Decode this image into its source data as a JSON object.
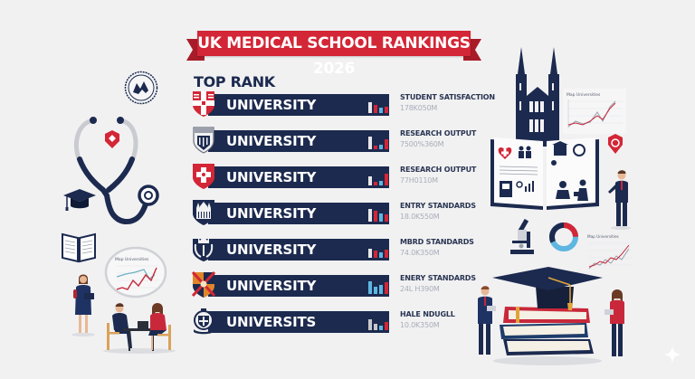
{
  "title": "UK MEDICAL SCHOOL RANKINGS 2026",
  "section_label": "TOP RANK",
  "colors": {
    "navy": "#1c2a4f",
    "red": "#d32636",
    "light_blue": "#5fb6e0",
    "background": "#f1f1f2"
  },
  "rankings": [
    {
      "name": "UNIVERSITY",
      "crest": "red-shield-cross-crest",
      "metric": "STUDENT SATISFACTION",
      "value": "178K050M",
      "bars": [
        [
          "#e8e8ea",
          12
        ],
        [
          "#d32636",
          9
        ],
        [
          "#5fb6e0",
          6
        ],
        [
          "#d32636",
          7
        ]
      ]
    },
    {
      "name": "UNIVERSITY",
      "crest": "grey-heraldic-crest",
      "metric": "RESEARCH OUTPUT",
      "value": "7500%360M",
      "bars": [
        [
          "#e8e8ea",
          14
        ],
        [
          "#d32636",
          4
        ],
        [
          "#5fb6e0",
          5
        ],
        [
          "#d32636",
          11
        ]
      ]
    },
    {
      "name": "UNIVERSITY",
      "crest": "red-shield-white-cross-crest",
      "metric": "RESEARCH OUTPUT",
      "value": "77H0110M",
      "bars": [
        [
          "#e8e8ea",
          10
        ],
        [
          "#d32636",
          4
        ],
        [
          "#5fb6e0",
          5
        ],
        [
          "#d32636",
          13
        ]
      ]
    },
    {
      "name": "UNIVERSITY",
      "crest": "navy-cathedral-crest",
      "metric": "ENTRY STANDARDS",
      "value": "18.0K550M",
      "bars": [
        [
          "#e8e8ea",
          14
        ],
        [
          "#d32636",
          12
        ],
        [
          "#5fb6e0",
          9
        ],
        [
          "#d32636",
          8
        ]
      ]
    },
    {
      "name": "UNIVERSITY",
      "crest": "navy-crown-laurel-crest",
      "metric": "MBRD STANDARDS",
      "value": "74.0K350M",
      "bars": [
        [
          "#e8e8ea",
          10
        ],
        [
          "#d32636",
          8
        ],
        [
          "#5fb6e0",
          6
        ],
        [
          "#d32636",
          9
        ]
      ]
    },
    {
      "name": "UNIVERSITY",
      "crest": "orange-quartered-crest",
      "metric": "ENERY STANDARDS",
      "value": "24L H390M",
      "bars": [
        [
          "#5fb6e0",
          14
        ],
        [
          "#5fb6e0",
          8
        ],
        [
          "#5fb6e0",
          10
        ],
        [
          "#d32636",
          13
        ]
      ]
    },
    {
      "name": "UNIVERSITS",
      "crest": "navy-round-emblem-crest",
      "metric": "HALE NDUGLL",
      "value": "10.0K350M",
      "bars": [
        [
          "#c8c8cc",
          12
        ],
        [
          "#c8c8cc",
          7
        ],
        [
          "#5fb6e0",
          5
        ],
        [
          "#d32636",
          9
        ]
      ]
    }
  ],
  "illustrations": {
    "left": {
      "emblem": "circular-seal-icon",
      "stethoscope": "stethoscope-icon",
      "grad_cap": "graduation-cap-icon",
      "book": "open-book-icon",
      "chart_title": "Map Universities",
      "people": [
        "standing-student-with-tablet",
        "two-people-at-desk"
      ]
    },
    "right": {
      "building": "gothic-university-building",
      "chart_title_top": "Map Universities",
      "chart_title_bottom": "Map Universities",
      "donut": "donut-chart",
      "microscope": "microscope-icon",
      "books": "stacked-books-with-grad-cap",
      "people": [
        "presenter-man",
        "man-with-tablet",
        "woman-with-tablet"
      ]
    }
  }
}
